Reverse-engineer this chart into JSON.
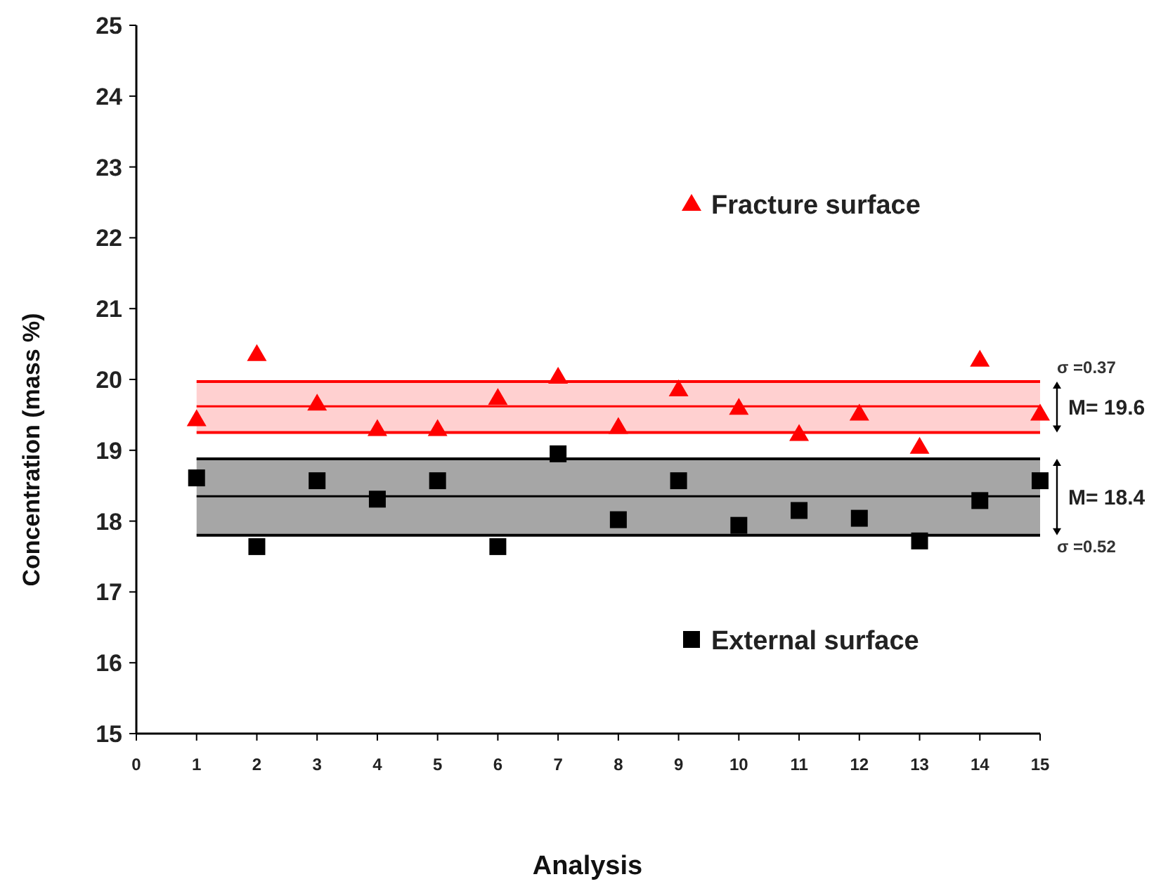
{
  "chart_data": {
    "type": "scatter",
    "xlabel": "Analysis",
    "ylabel": "Concentration (mass %)",
    "x": [
      1,
      2,
      3,
      4,
      5,
      6,
      7,
      8,
      9,
      10,
      11,
      12,
      13,
      14,
      15
    ],
    "series": [
      {
        "name": "Fracture surface",
        "color": "#ff0000",
        "marker": "triangle",
        "values": [
          19.44,
          20.36,
          19.66,
          19.3,
          19.3,
          19.74,
          20.04,
          19.33,
          19.86,
          19.6,
          19.23,
          19.52,
          19.05,
          20.28,
          19.52
        ]
      },
      {
        "name": "External surface",
        "color": "#000000",
        "marker": "square",
        "values": [
          18.61,
          17.64,
          18.57,
          18.31,
          18.57,
          17.64,
          18.95,
          18.02,
          18.57,
          17.94,
          18.15,
          18.04,
          17.72,
          18.29,
          18.57
        ]
      }
    ],
    "xlim": [
      0,
      15
    ],
    "xticks": [
      0,
      1,
      2,
      3,
      4,
      5,
      6,
      7,
      8,
      9,
      10,
      11,
      12,
      13,
      14,
      15
    ],
    "ylim": [
      15,
      25
    ],
    "yticks": [
      15,
      16,
      17,
      18,
      19,
      20,
      21,
      22,
      23,
      24,
      25
    ],
    "bands": [
      {
        "axis": "y",
        "from": 19.25,
        "to": 19.97,
        "label": "σ =0.37",
        "color": "#ffd0d0"
      },
      {
        "axis": "y",
        "from": 17.8,
        "to": 18.88,
        "label": "σ =0.52",
        "color": "#a6a6a6"
      }
    ],
    "ref_lines": [
      {
        "axis": "y",
        "value": 19.62,
        "label": "M= 19.6",
        "color": "#ff0000"
      },
      {
        "axis": "y",
        "value": 18.35,
        "label": "M= 18.4",
        "color": "#000000"
      },
      {
        "axis": "y",
        "value": 19.97,
        "color": "#ff0000"
      },
      {
        "axis": "y",
        "value": 19.25,
        "color": "#ff0000"
      },
      {
        "axis": "y",
        "value": 18.88,
        "color": "#000000"
      },
      {
        "axis": "y",
        "value": 17.8,
        "color": "#000000"
      }
    ],
    "legend": "right",
    "grid": false
  }
}
